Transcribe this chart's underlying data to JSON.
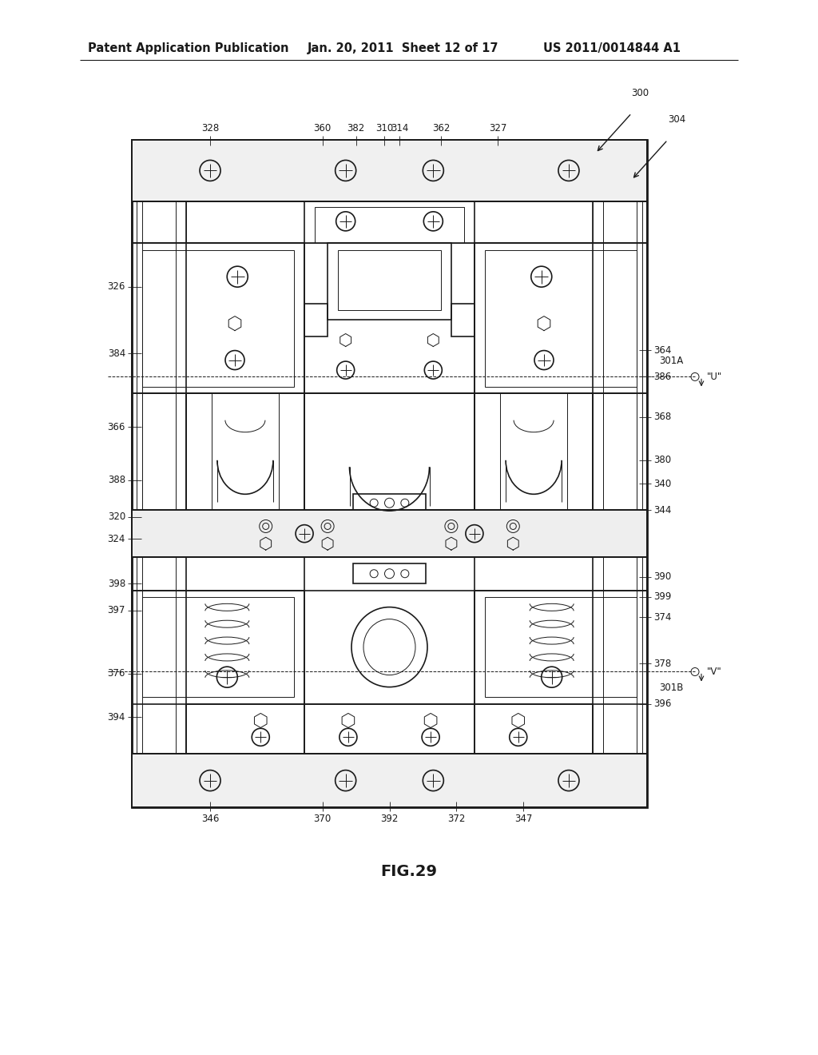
{
  "background_color": "#ffffff",
  "header_text": "Patent Application Publication",
  "header_date": "Jan. 20, 2011  Sheet 12 of 17",
  "header_patent": "US 2011/0014844 A1",
  "figure_label": "FIG.29",
  "title_fontsize": 10.5,
  "label_fontsize": 8.5,
  "color": "#1a1a1a",
  "lw_thick": 2.0,
  "lw_main": 1.2,
  "lw_thin": 0.7,
  "lw_hair": 0.5
}
